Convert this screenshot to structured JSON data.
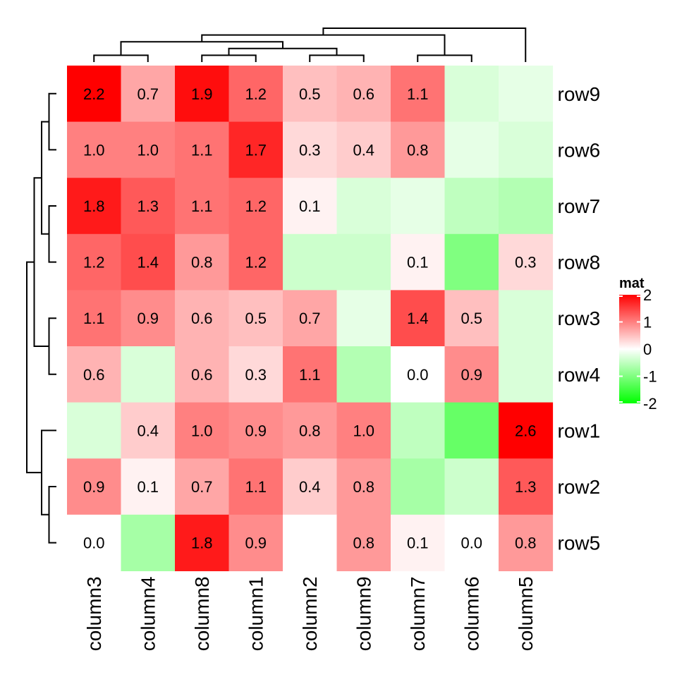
{
  "chart_data": {
    "type": "heatmap",
    "rows": [
      "row9",
      "row6",
      "row7",
      "row8",
      "row3",
      "row4",
      "row1",
      "row2",
      "row5"
    ],
    "columns": [
      "column3",
      "column4",
      "column8",
      "column1",
      "column2",
      "column9",
      "column7",
      "column6",
      "column5"
    ],
    "values": [
      [
        2.2,
        0.7,
        1.9,
        1.2,
        0.5,
        0.6,
        1.1,
        -0.3,
        -0.2
      ],
      [
        1.0,
        1.0,
        1.1,
        1.7,
        0.3,
        0.4,
        0.8,
        -0.2,
        -0.3
      ],
      [
        1.8,
        1.3,
        1.1,
        1.2,
        0.1,
        -0.3,
        -0.2,
        -0.5,
        -0.6
      ],
      [
        1.2,
        1.4,
        0.8,
        1.2,
        -0.4,
        -0.4,
        0.1,
        -1.0,
        0.3
      ],
      [
        1.1,
        0.9,
        0.6,
        0.5,
        0.7,
        -0.2,
        1.4,
        0.5,
        -0.3
      ],
      [
        0.6,
        -0.3,
        0.6,
        0.3,
        1.1,
        -0.6,
        0.0,
        0.9,
        -0.3
      ],
      [
        -0.3,
        0.4,
        1.0,
        0.9,
        0.8,
        1.0,
        -0.5,
        -1.2,
        2.6
      ],
      [
        0.9,
        0.1,
        0.7,
        1.1,
        0.4,
        0.8,
        -0.7,
        -0.4,
        1.3
      ],
      [
        0.0,
        -0.7,
        1.8,
        0.9,
        0.0,
        0.8,
        0.1,
        0.0,
        0.8
      ]
    ],
    "cell_labels": [
      [
        "2.2",
        "0.7",
        "1.9",
        "1.2",
        "0.5",
        "0.6",
        "1.1",
        "",
        ""
      ],
      [
        "1.0",
        "1.0",
        "1.1",
        "1.7",
        "0.3",
        "0.4",
        "0.8",
        "",
        ""
      ],
      [
        "1.8",
        "1.3",
        "1.1",
        "1.2",
        "0.1",
        "",
        "",
        "",
        ""
      ],
      [
        "1.2",
        "1.4",
        "0.8",
        "1.2",
        "",
        "",
        "0.1",
        "",
        "0.3"
      ],
      [
        "1.1",
        "0.9",
        "0.6",
        "0.5",
        "0.7",
        "",
        "1.4",
        "0.5",
        ""
      ],
      [
        "0.6",
        "",
        "0.6",
        "0.3",
        "1.1",
        "",
        "0.0",
        "0.9",
        ""
      ],
      [
        "",
        "0.4",
        "1.0",
        "0.9",
        "0.8",
        "1.0",
        "",
        "",
        "2.6"
      ],
      [
        "0.9",
        "0.1",
        "0.7",
        "1.1",
        "0.4",
        "0.8",
        "",
        "",
        "1.3"
      ],
      [
        "0.0",
        "",
        "1.8",
        "0.9",
        "",
        "0.8",
        "0.1",
        "0.0",
        "0.8"
      ]
    ],
    "colorscale": {
      "min": -2,
      "mid": 0,
      "max": 2,
      "low_color": "#00ff00",
      "mid_color": "#ffffff",
      "high_color": "#ff0000"
    },
    "legend": {
      "title": "mat",
      "placement": "right",
      "ticks": [
        2,
        1,
        0,
        -1,
        -2
      ],
      "tick_labels": [
        "2",
        "1",
        "0",
        "-1",
        "-2"
      ]
    },
    "row_dendrogram": [
      [
        0,
        1
      ],
      [
        2,
        3
      ],
      [
        9,
        10
      ],
      [
        4,
        5
      ],
      [
        11,
        12
      ],
      [
        7,
        8
      ],
      [
        6,
        14
      ],
      [
        13,
        15
      ]
    ],
    "col_dendrogram": [
      [
        0,
        1
      ],
      [
        2,
        3
      ],
      [
        4,
        5
      ],
      [
        10,
        11
      ],
      [
        9,
        12
      ],
      [
        6,
        7
      ],
      [
        13,
        14
      ],
      [
        8,
        15
      ]
    ],
    "title": "",
    "xlabel": "",
    "ylabel": ""
  }
}
